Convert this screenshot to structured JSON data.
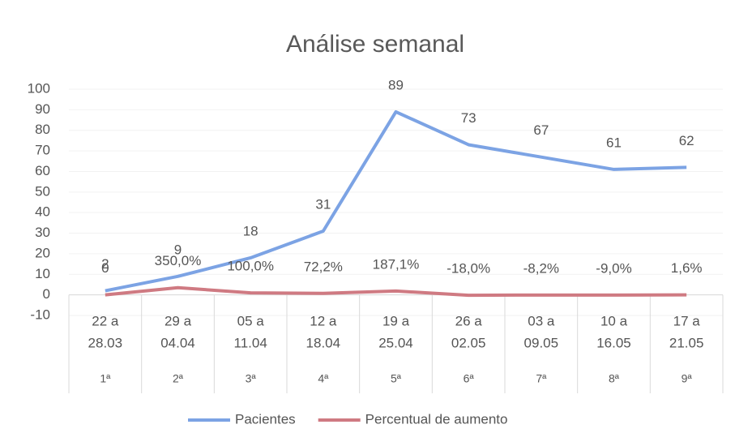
{
  "chart_data": {
    "type": "line",
    "title": "Análise semanal",
    "categories": [
      [
        "22 a",
        "28.03"
      ],
      [
        "29 a",
        "04.04"
      ],
      [
        "05 a",
        "11.04"
      ],
      [
        "12 a",
        "18.04"
      ],
      [
        "19 a",
        "25.04"
      ],
      [
        "26 a",
        "02.05"
      ],
      [
        "03 a",
        "09.05"
      ],
      [
        "10 a",
        "16.05"
      ],
      [
        "17 a",
        "21.05"
      ]
    ],
    "category_groups": [
      "1ª",
      "2ª",
      "3ª",
      "4ª",
      "5ª",
      "6ª",
      "7ª",
      "8ª",
      "9ª"
    ],
    "series": [
      {
        "name": "Pacientes",
        "color": "#7ca3e4",
        "values": [
          2,
          9,
          18,
          31,
          89,
          73,
          67,
          61,
          62
        ]
      },
      {
        "name": "Percentual de aumento",
        "color": "#cf7a82",
        "values": [
          0,
          3.5,
          1.0,
          0.722,
          1.871,
          -0.18,
          -0.082,
          -0.09,
          0.016
        ],
        "value_labels": [
          "0",
          "350,0%",
          "100,0%",
          "72,2%",
          "187,1%",
          "-18,0%",
          "-8,2%",
          "-9,0%",
          "1,6%"
        ]
      }
    ],
    "ylim": [
      -10,
      100
    ],
    "yticks": [
      -10,
      0,
      10,
      20,
      30,
      40,
      50,
      60,
      70,
      80,
      90,
      100
    ],
    "grid": true,
    "legend": "bottom"
  }
}
